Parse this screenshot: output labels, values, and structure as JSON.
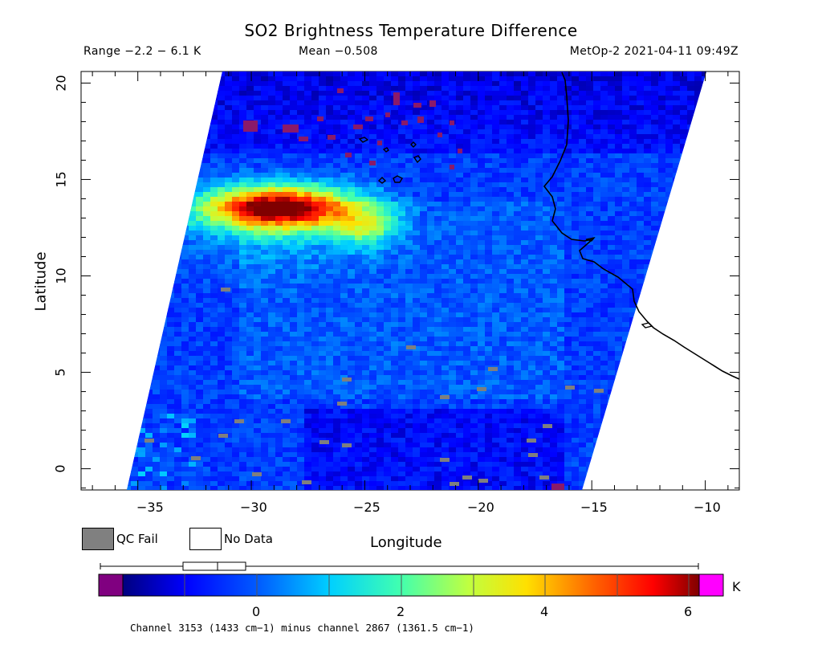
{
  "header": {
    "title": "SO2 Brightness Temperature Difference",
    "range": "Range −2.2 − 6.1 K",
    "mean": "Mean −0.508",
    "satellite_time": "MetOp-2 2021-04-11 09:49Z"
  },
  "axes": {
    "xlabel": "Longitude",
    "ylabel": "Latitude",
    "x_ticks": [
      "−35",
      "−30",
      "−25",
      "−20",
      "−15",
      "−10"
    ],
    "y_ticks": [
      "0",
      "5",
      "10",
      "15",
      "20"
    ],
    "x_range": [
      -37.5,
      -8.5
    ],
    "y_range": [
      -1.1,
      20.6
    ]
  },
  "legend": {
    "qc_fail": "QC Fail",
    "qc_fail_color": "#808080",
    "no_data": "No Data",
    "no_data_color": "#ffffff"
  },
  "colorbar": {
    "unit": "K",
    "ticks": [
      "0",
      "2",
      "4",
      "6"
    ],
    "under_color": "#800080",
    "over_color": "#ff00ff",
    "range": [
      -2.2,
      6.1
    ]
  },
  "footnote": "Channel 3153 (1433 cm−1) minus channel 2867 (1361.5 cm−1)",
  "map_data": {
    "type": "heatmap",
    "background_value_K": -0.5,
    "so2_plume": {
      "max_value_K": 6.1,
      "lon_range": [
        -35.5,
        -23.0
      ],
      "lat_range": [
        11.0,
        14.5
      ]
    },
    "coastline": "West Africa (Senegal/Guinea coast)"
  }
}
